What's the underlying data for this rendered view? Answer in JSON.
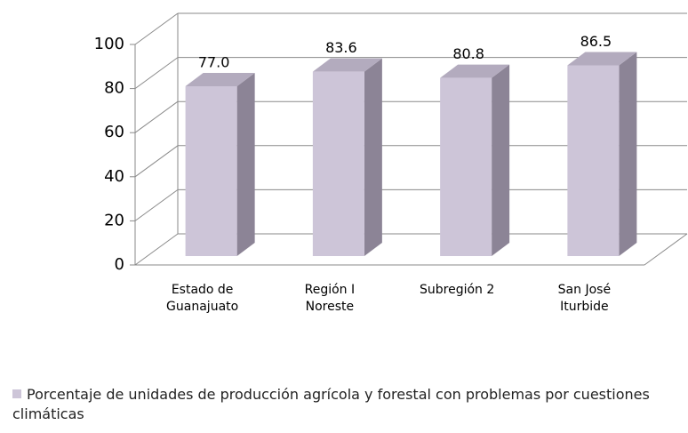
{
  "chart_data": {
    "type": "bar3d",
    "categories": [
      "Estado de Guanajuato",
      "Región I Noreste",
      "Subregión 2",
      "San José Iturbide"
    ],
    "series": [
      {
        "name": "Porcentaje de unidades de producción agrícola y forestal con problemas por cuestiones climáticas",
        "color": "#cdc5d8",
        "values": [
          77.0,
          83.6,
          80.8,
          86.5
        ],
        "value_labels": [
          "77.0",
          "83.6",
          "80.8",
          "86.5"
        ]
      }
    ],
    "ylim": [
      0,
      100
    ],
    "yticks": [
      0,
      20,
      40,
      60,
      80,
      100
    ],
    "grid": true,
    "legend": "bottom"
  }
}
